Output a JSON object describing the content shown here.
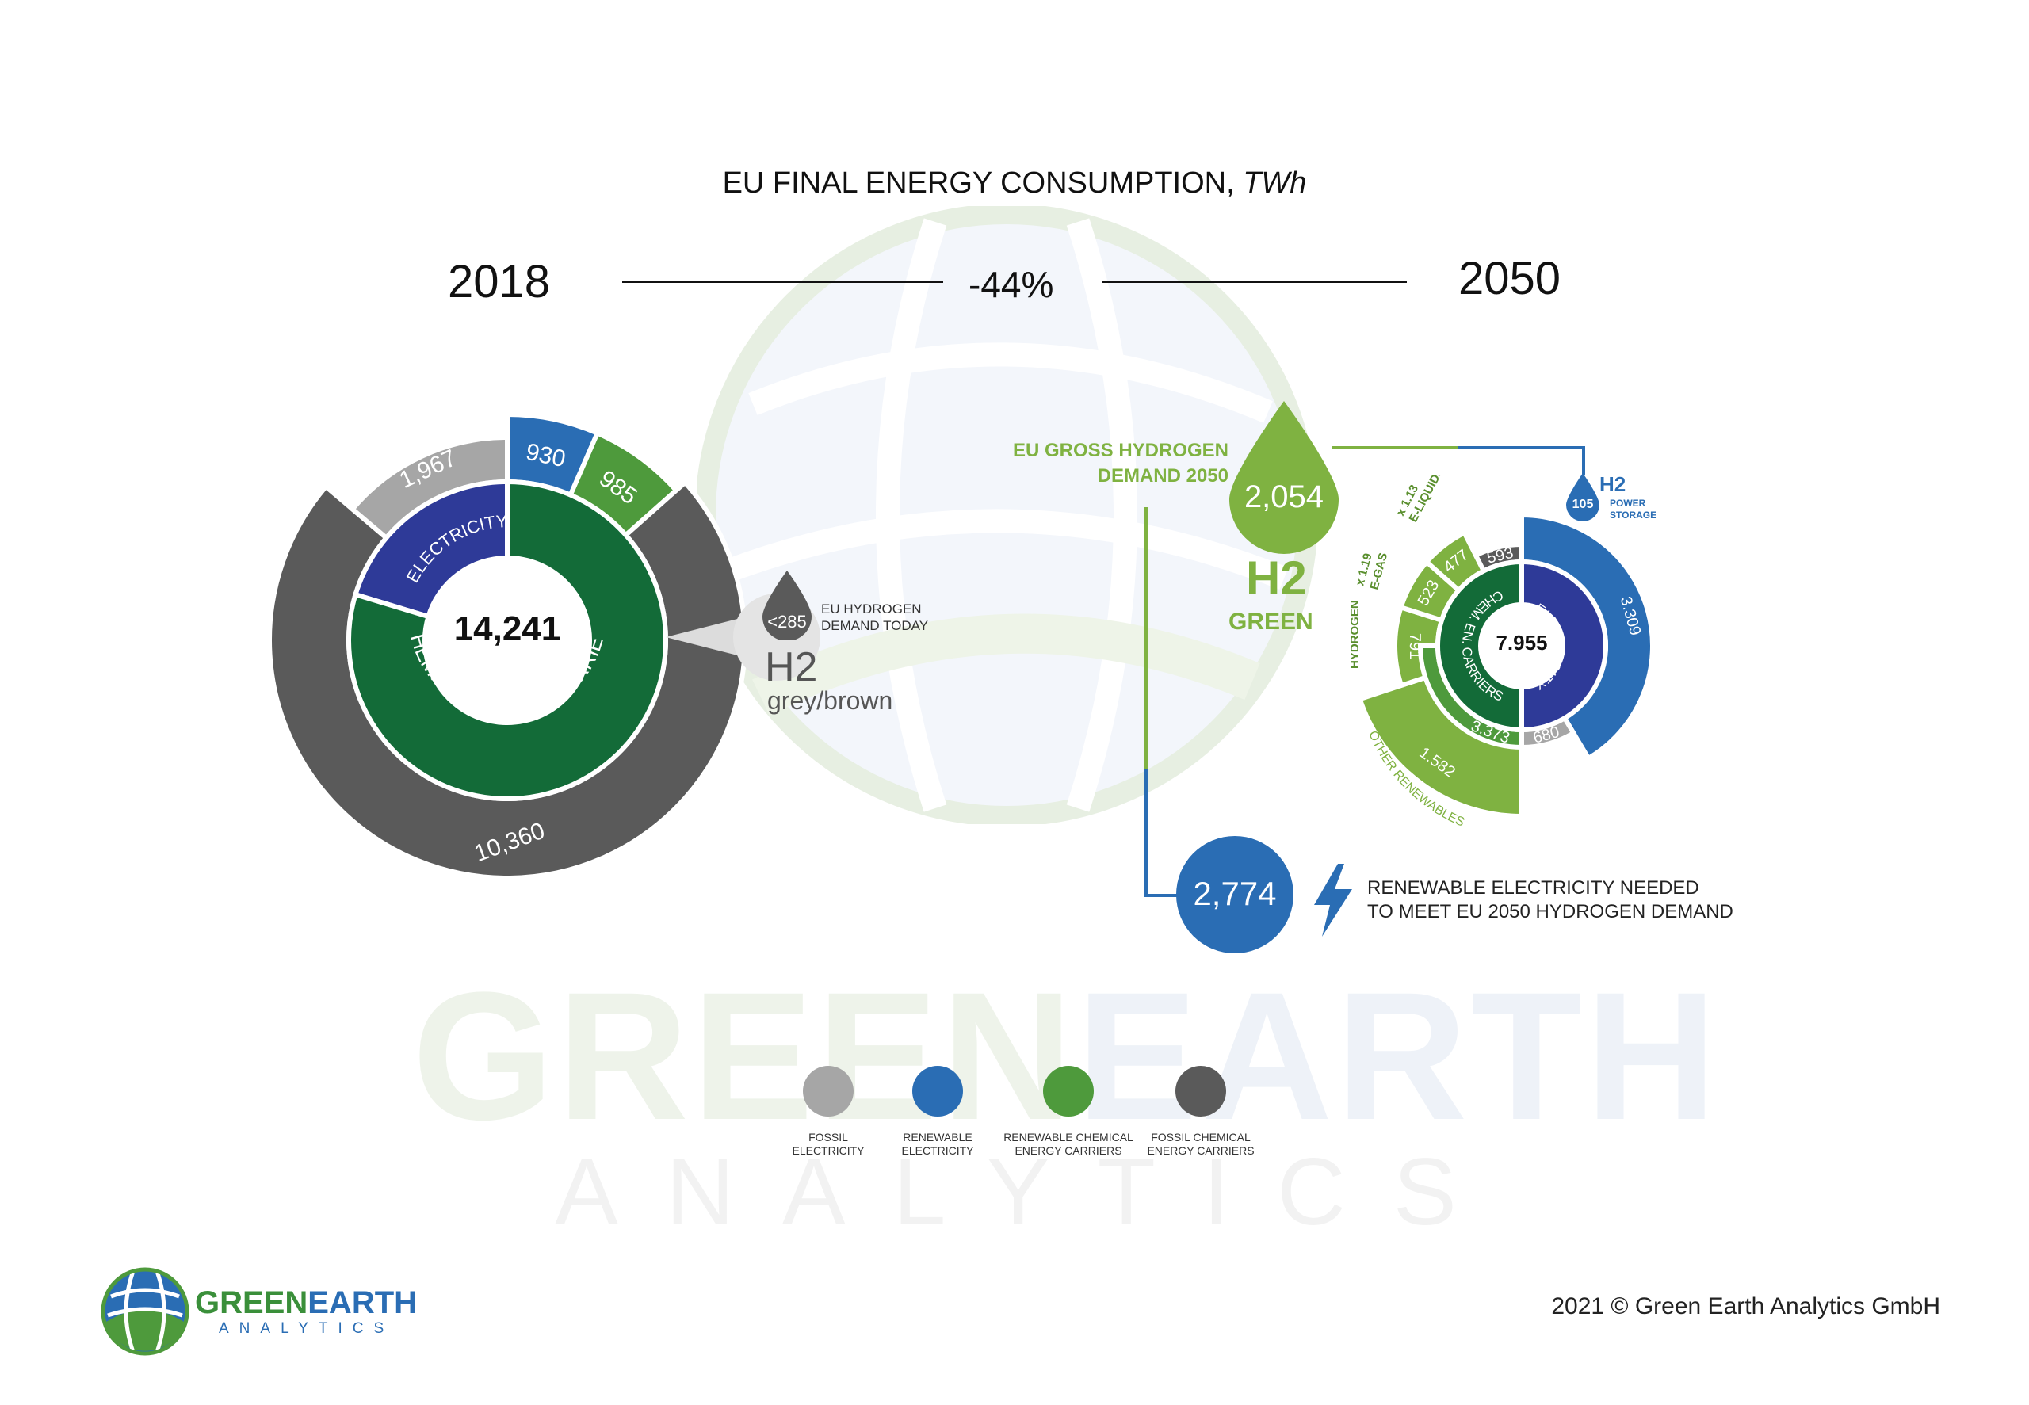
{
  "title": "EU FINAL ENERGY CONSUMPTION,",
  "title_unit": "TWh",
  "year_left": "2018",
  "year_right": "2050",
  "change_label": "-44%",
  "colors": {
    "fossil_electricity": "#a6a6a6",
    "renewable_electricity": "#2a6db4",
    "renewable_chemical": "#4e9a3c",
    "fossil_chemical": "#5a5a5a",
    "electricity_inner": "#2e3a98",
    "chemical_inner": "#136b38",
    "light_green": "#7fb241"
  },
  "chart_data": [
    {
      "type": "pie",
      "name": "2018",
      "total": "14,241",
      "inner_labels": [
        "ELECTRICITY",
        "CHEMICAL ENERGY CARRIERS"
      ],
      "outer": [
        {
          "label": "930",
          "value": 930,
          "category": "renewable_electricity"
        },
        {
          "label": "985",
          "value": 985,
          "category": "renewable_chemical"
        },
        {
          "label": "10,360",
          "value": 10360,
          "category": "fossil_chemical"
        },
        {
          "label": "1,967",
          "value": 1967,
          "category": "fossil_electricity"
        }
      ],
      "inner": [
        {
          "category": "electricity",
          "value": 2897
        },
        {
          "category": "chemical",
          "value": 11345
        }
      ]
    },
    {
      "type": "pie",
      "name": "2050",
      "total": "7.955",
      "inner_labels": [
        "ELECTRICITY",
        "CHEM. EN. CARRIERS"
      ],
      "electricity": [
        {
          "label": "3.309",
          "value": 3309,
          "category": "renewable_electricity"
        },
        {
          "label": "680",
          "value": 680,
          "category": "fossil_electricity"
        }
      ],
      "chemical_total": "3.373",
      "chemical": [
        {
          "label": "1.582",
          "value": 1582,
          "category": "light_green",
          "note": "OTHER RENEWABLES"
        },
        {
          "label": "791",
          "value": 791,
          "category": "light_green",
          "note": "HYDROGEN"
        },
        {
          "label": "523",
          "value": 523,
          "category": "light_green",
          "note": "E-GAS",
          "factor": "x 1.19"
        },
        {
          "label": "477",
          "value": 477,
          "category": "light_green",
          "note": "E-LIQUIDS",
          "factor": "x 1.13"
        },
        {
          "label": "593",
          "value": 593,
          "category": "fossil_chemical"
        }
      ]
    }
  ],
  "h2_today": {
    "value": "<285",
    "caption_1": "EU HYDROGEN",
    "caption_2": "DEMAND TODAY",
    "symbol": "H2",
    "kind": "grey/brown"
  },
  "h2_2050": {
    "value": "2,054",
    "caption_1": "EU GROSS HYDROGEN",
    "caption_2": "DEMAND 2050",
    "symbol": "H2",
    "kind": "GREEN"
  },
  "h2_storage": {
    "value": "105",
    "symbol": "H2",
    "caption_1": "POWER",
    "caption_2": "STORAGE"
  },
  "renewable_needed": {
    "value": "2,774",
    "line_1": "RENEWABLE ELECTRICITY NEEDED",
    "line_2": "TO MEET EU 2050 HYDROGEN DEMAND"
  },
  "legend": [
    {
      "line_1": "FOSSIL",
      "line_2": "ELECTRICITY",
      "color": "#a6a6a6"
    },
    {
      "line_1": "RENEWABLE",
      "line_2": "ELECTRICITY",
      "color": "#2a6db4"
    },
    {
      "line_1": "RENEWABLE CHEMICAL",
      "line_2": "ENERGY CARRIERS",
      "color": "#4e9a3c"
    },
    {
      "line_1": "FOSSIL CHEMICAL",
      "line_2": "ENERGY CARRIERS",
      "color": "#5a5a5a"
    }
  ],
  "watermark": {
    "green": "GREEN",
    "blue": "EARTH",
    "sub": "ANALYTICS"
  },
  "logo": {
    "green": "GREEN",
    "blue": "EARTH",
    "sub": "ANALYTICS"
  },
  "footer": "2021 © Green Earth Analytics GmbH"
}
